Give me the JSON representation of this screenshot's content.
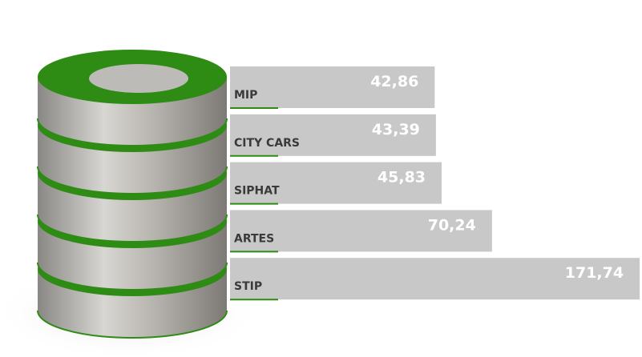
{
  "chart_data": {
    "type": "bar",
    "categories": [
      "MIP",
      "CITY CARS",
      "SIPHAT",
      "ARTES",
      "STIP"
    ],
    "values": [
      42.86,
      43.39,
      45.83,
      70.24,
      171.74
    ],
    "value_labels": [
      "42,86",
      "43,39",
      "45,83",
      "70,24",
      "171,74"
    ],
    "color": "#c8c8c8"
  }
}
